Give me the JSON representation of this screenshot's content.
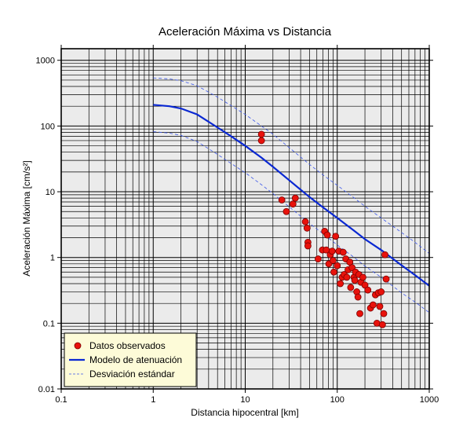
{
  "chart_data": {
    "type": "scatter",
    "title": "Aceleración Máxima vs Distancia",
    "xlabel": "Distancia hipocentral [km]",
    "ylabel": "Aceleración Máxima [cm/s²]",
    "xscale": "log",
    "yscale": "log",
    "xlim": [
      0.1,
      1000
    ],
    "ylim": [
      0.01,
      1500
    ],
    "grid": true,
    "legend_position": "bottom-left",
    "xticks": [
      "0.1",
      "1",
      "10",
      "100",
      "1000"
    ],
    "yticks": [
      "0.01",
      "0.1",
      "1",
      "10",
      "100",
      "1000"
    ],
    "colors": {
      "plot_background": "#ebebeb",
      "points": "#e8120c",
      "model_line": "#0a28d2",
      "deviation_line": "#3a55e8",
      "legend_background": "#fdfbd8"
    },
    "series": [
      {
        "name": "Datos observados",
        "kind": "points",
        "x": [
          15,
          15,
          25,
          28,
          33,
          35,
          45,
          47,
          48,
          48,
          62,
          69,
          73,
          76,
          78,
          81,
          84,
          88,
          90,
          92,
          96,
          100,
          104,
          108,
          113,
          116,
          119,
          124,
          127,
          131,
          137,
          140,
          145,
          152,
          155,
          158,
          163,
          168,
          172,
          176,
          181,
          190,
          200,
          215,
          230,
          245,
          260,
          270,
          280,
          290,
          300,
          310,
          320,
          330,
          340
        ],
        "y": [
          75,
          60,
          7.5,
          5,
          6.5,
          8,
          3.5,
          2.8,
          1.7,
          1.5,
          0.95,
          1.3,
          2.5,
          1.3,
          2.2,
          0.8,
          1.1,
          1.25,
          0.9,
          0.6,
          2.1,
          0.75,
          1.25,
          0.4,
          0.5,
          1.2,
          0.55,
          0.95,
          0.5,
          0.65,
          0.85,
          0.35,
          0.7,
          0.5,
          0.45,
          0.6,
          0.3,
          0.25,
          0.55,
          0.14,
          0.42,
          0.5,
          0.38,
          0.32,
          0.17,
          0.19,
          0.27,
          0.1,
          0.29,
          0.18,
          0.3,
          0.095,
          0.14,
          1.1,
          0.47
        ]
      },
      {
        "name": "Modelo de atenuación",
        "kind": "line",
        "x": [
          1,
          1.5,
          2,
          3,
          5,
          7,
          10,
          15,
          20,
          30,
          50,
          70,
          100,
          150,
          200,
          300,
          500,
          700,
          1000
        ],
        "y": [
          210,
          200,
          185,
          150,
          95,
          70,
          50,
          33,
          24,
          15,
          8.3,
          5.8,
          4.0,
          2.6,
          1.9,
          1.3,
          0.76,
          0.54,
          0.37
        ]
      },
      {
        "name": "Desviación estándar",
        "kind": "dashed",
        "bands": [
          {
            "x": [
              1,
              1.5,
              2,
              3,
              5,
              7,
              10,
              15,
              20,
              30,
              50,
              70,
              100,
              150,
              200,
              300,
              500,
              700,
              1000
            ],
            "y": [
              540,
              520,
              490,
              410,
              275,
              205,
              150,
              100,
              75,
              47,
              26,
              18,
              12.5,
              8.2,
              6.0,
              4.0,
              2.4,
              1.7,
              1.15
            ]
          },
          {
            "x": [
              1,
              1.5,
              2,
              3,
              5,
              7,
              10,
              15,
              20,
              30,
              50,
              70,
              100,
              150,
              200,
              300,
              500,
              700,
              1000
            ],
            "y": [
              82,
              78,
              72,
              58,
              37,
              27,
              19.5,
              12.8,
              9.4,
              5.9,
              3.3,
              2.3,
              1.55,
              1.02,
              0.74,
              0.5,
              0.29,
              0.21,
              0.145
            ]
          }
        ]
      }
    ]
  }
}
